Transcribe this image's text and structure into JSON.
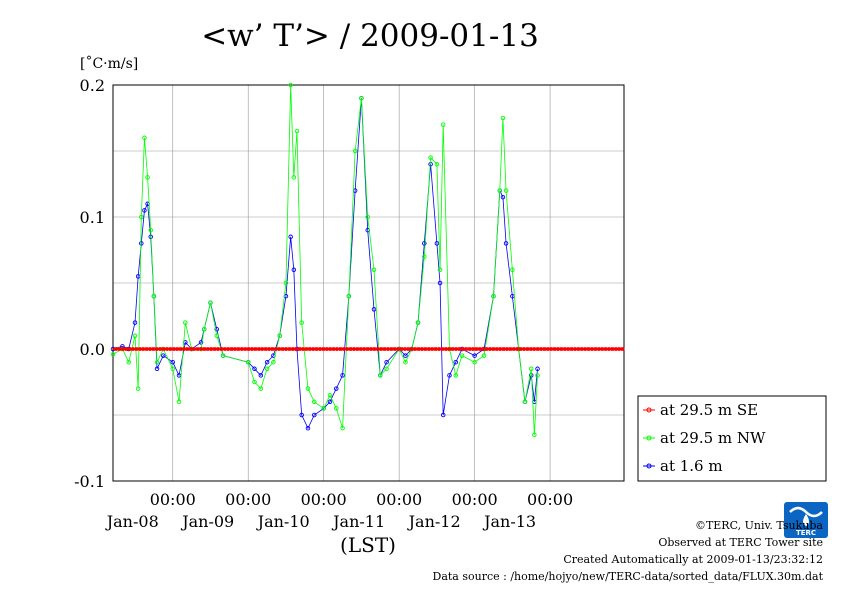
{
  "chart_data": {
    "type": "line",
    "title": "<w’ T’> / 2009-01-13",
    "unit_label": "[˚C·m/s]",
    "xlabel": "(LST)",
    "ylim": [
      -0.1,
      0.2
    ],
    "xlim": [
      "2009-01-07T05:00",
      "2009-01-13T23:30"
    ],
    "y_ticks": [
      "-0.1",
      "0.0",
      "0.1",
      "0.2"
    ],
    "x_ticks": [
      {
        "time": "00:00",
        "date": "Jan-08",
        "x": "2009-01-08T00:00"
      },
      {
        "time": "00:00",
        "date": "Jan-09",
        "x": "2009-01-09T00:00"
      },
      {
        "time": "00:00",
        "date": "Jan-10",
        "x": "2009-01-10T00:00"
      },
      {
        "time": "00:00",
        "date": "Jan-11",
        "x": "2009-01-11T00:00"
      },
      {
        "time": "00:00",
        "date": "Jan-12",
        "x": "2009-01-12T00:00"
      },
      {
        "time": "00:00",
        "date": "Jan-13",
        "x": "2009-01-13T00:00"
      }
    ],
    "grid": true,
    "legend_position": "right",
    "series": [
      {
        "name": "at 29.5 m SE",
        "color": "#ff0000",
        "marker": "open-circle",
        "points": [
          [
            "2009-01-07T05:00",
            0.0
          ],
          [
            "2009-01-08T00:00",
            0.0
          ],
          [
            "2009-01-09T00:00",
            0.0
          ],
          [
            "2009-01-10T00:00",
            0.0
          ],
          [
            "2009-01-11T00:00",
            0.0
          ],
          [
            "2009-01-12T00:00",
            0.0
          ],
          [
            "2009-01-13T00:00",
            0.0
          ],
          [
            "2009-01-13T23:30",
            0.0
          ]
        ]
      },
      {
        "name": "at 29.5 m NW",
        "color": "#00ff00",
        "marker": "open-circle",
        "points": [
          [
            "2009-01-07T05:00",
            -0.004
          ],
          [
            "2009-01-07T08:00",
            0.0
          ],
          [
            "2009-01-07T10:00",
            -0.01
          ],
          [
            "2009-01-07T12:00",
            0.01
          ],
          [
            "2009-01-07T13:00",
            -0.03
          ],
          [
            "2009-01-07T14:00",
            0.1
          ],
          [
            "2009-01-07T15:00",
            0.16
          ],
          [
            "2009-01-07T16:00",
            0.13
          ],
          [
            "2009-01-07T17:00",
            0.09
          ],
          [
            "2009-01-07T18:00",
            0.04
          ],
          [
            "2009-01-07T19:00",
            -0.01
          ],
          [
            "2009-01-07T21:00",
            0.0
          ],
          [
            "2009-01-08T00:00",
            -0.015
          ],
          [
            "2009-01-08T02:00",
            -0.04
          ],
          [
            "2009-01-08T04:00",
            0.02
          ],
          [
            "2009-01-08T06:00",
            0.0
          ],
          [
            "2009-01-08T09:00",
            0.0
          ],
          [
            "2009-01-08T10:00",
            0.015
          ],
          [
            "2009-01-08T12:00",
            0.035
          ],
          [
            "2009-01-08T14:00",
            0.01
          ],
          [
            "2009-01-08T16:00",
            -0.005
          ],
          [
            "2009-01-09T00:00",
            -0.01
          ],
          [
            "2009-01-09T02:00",
            -0.025
          ],
          [
            "2009-01-09T04:00",
            -0.03
          ],
          [
            "2009-01-09T06:00",
            -0.015
          ],
          [
            "2009-01-09T08:00",
            -0.01
          ],
          [
            "2009-01-09T10:00",
            0.01
          ],
          [
            "2009-01-09T12:00",
            0.05
          ],
          [
            "2009-01-09T13:30",
            0.2
          ],
          [
            "2009-01-09T14:30",
            0.13
          ],
          [
            "2009-01-09T15:30",
            0.165
          ],
          [
            "2009-01-09T17:00",
            0.02
          ],
          [
            "2009-01-09T19:00",
            -0.03
          ],
          [
            "2009-01-09T21:00",
            -0.04
          ],
          [
            "2009-01-10T00:00",
            -0.045
          ],
          [
            "2009-01-10T02:00",
            -0.035
          ],
          [
            "2009-01-10T04:00",
            -0.045
          ],
          [
            "2009-01-10T06:00",
            -0.06
          ],
          [
            "2009-01-10T08:00",
            0.04
          ],
          [
            "2009-01-10T10:00",
            0.15
          ],
          [
            "2009-01-10T12:00",
            0.19
          ],
          [
            "2009-01-10T14:00",
            0.1
          ],
          [
            "2009-01-10T16:00",
            0.06
          ],
          [
            "2009-01-10T18:00",
            -0.02
          ],
          [
            "2009-01-10T20:00",
            -0.015
          ],
          [
            "2009-01-11T00:00",
            0.0
          ],
          [
            "2009-01-11T02:00",
            -0.01
          ],
          [
            "2009-01-11T04:00",
            0.0
          ],
          [
            "2009-01-11T06:00",
            0.02
          ],
          [
            "2009-01-11T08:00",
            0.07
          ],
          [
            "2009-01-11T10:00",
            0.145
          ],
          [
            "2009-01-11T12:00",
            0.14
          ],
          [
            "2009-01-11T13:00",
            0.06
          ],
          [
            "2009-01-11T14:00",
            0.17
          ],
          [
            "2009-01-11T16:00",
            0.0
          ],
          [
            "2009-01-11T18:00",
            -0.02
          ],
          [
            "2009-01-11T20:00",
            -0.005
          ],
          [
            "2009-01-12T00:00",
            -0.01
          ],
          [
            "2009-01-12T03:00",
            -0.005
          ],
          [
            "2009-01-12T06:00",
            0.04
          ],
          [
            "2009-01-12T08:00",
            0.12
          ],
          [
            "2009-01-12T09:00",
            0.175
          ],
          [
            "2009-01-12T10:00",
            0.12
          ],
          [
            "2009-01-12T12:00",
            0.06
          ],
          [
            "2009-01-12T14:00",
            0.0
          ],
          [
            "2009-01-12T16:00",
            -0.04
          ],
          [
            "2009-01-12T18:00",
            -0.015
          ],
          [
            "2009-01-12T19:00",
            -0.065
          ],
          [
            "2009-01-12T20:00",
            -0.02
          ]
        ]
      },
      {
        "name": "at 1.6 m",
        "color": "#0000ff",
        "marker": "open-circle",
        "points": [
          [
            "2009-01-07T05:00",
            0.0
          ],
          [
            "2009-01-07T08:00",
            0.002
          ],
          [
            "2009-01-07T10:00",
            0.0
          ],
          [
            "2009-01-07T12:00",
            0.02
          ],
          [
            "2009-01-07T13:00",
            0.055
          ],
          [
            "2009-01-07T14:00",
            0.08
          ],
          [
            "2009-01-07T15:00",
            0.105
          ],
          [
            "2009-01-07T16:00",
            0.11
          ],
          [
            "2009-01-07T17:00",
            0.085
          ],
          [
            "2009-01-07T18:00",
            0.04
          ],
          [
            "2009-01-07T19:00",
            -0.015
          ],
          [
            "2009-01-07T21:00",
            -0.005
          ],
          [
            "2009-01-08T00:00",
            -0.01
          ],
          [
            "2009-01-08T02:00",
            -0.02
          ],
          [
            "2009-01-08T04:00",
            0.005
          ],
          [
            "2009-01-08T06:00",
            0.0
          ],
          [
            "2009-01-08T09:00",
            0.005
          ],
          [
            "2009-01-08T10:00",
            0.015
          ],
          [
            "2009-01-08T12:00",
            0.035
          ],
          [
            "2009-01-08T14:00",
            0.015
          ],
          [
            "2009-01-08T16:00",
            -0.005
          ],
          [
            "2009-01-09T00:00",
            -0.01
          ],
          [
            "2009-01-09T02:00",
            -0.015
          ],
          [
            "2009-01-09T04:00",
            -0.02
          ],
          [
            "2009-01-09T06:00",
            -0.01
          ],
          [
            "2009-01-09T08:00",
            -0.005
          ],
          [
            "2009-01-09T10:00",
            0.01
          ],
          [
            "2009-01-09T12:00",
            0.04
          ],
          [
            "2009-01-09T13:30",
            0.085
          ],
          [
            "2009-01-09T14:30",
            0.06
          ],
          [
            "2009-01-09T15:30",
            0.0
          ],
          [
            "2009-01-09T17:00",
            -0.05
          ],
          [
            "2009-01-09T19:00",
            -0.06
          ],
          [
            "2009-01-09T21:00",
            -0.05
          ],
          [
            "2009-01-10T00:00",
            -0.045
          ],
          [
            "2009-01-10T02:00",
            -0.04
          ],
          [
            "2009-01-10T04:00",
            -0.03
          ],
          [
            "2009-01-10T06:00",
            -0.02
          ],
          [
            "2009-01-10T08:00",
            0.04
          ],
          [
            "2009-01-10T10:00",
            0.12
          ],
          [
            "2009-01-10T12:00",
            0.19
          ],
          [
            "2009-01-10T14:00",
            0.09
          ],
          [
            "2009-01-10T16:00",
            0.03
          ],
          [
            "2009-01-10T18:00",
            -0.02
          ],
          [
            "2009-01-10T20:00",
            -0.01
          ],
          [
            "2009-01-11T00:00",
            0.0
          ],
          [
            "2009-01-11T02:00",
            -0.005
          ],
          [
            "2009-01-11T04:00",
            0.0
          ],
          [
            "2009-01-11T06:00",
            0.02
          ],
          [
            "2009-01-11T08:00",
            0.08
          ],
          [
            "2009-01-11T10:00",
            0.14
          ],
          [
            "2009-01-11T12:00",
            0.08
          ],
          [
            "2009-01-11T13:00",
            0.05
          ],
          [
            "2009-01-11T14:00",
            -0.05
          ],
          [
            "2009-01-11T16:00",
            -0.02
          ],
          [
            "2009-01-11T18:00",
            -0.01
          ],
          [
            "2009-01-11T20:00",
            0.0
          ],
          [
            "2009-01-12T00:00",
            -0.005
          ],
          [
            "2009-01-12T03:00",
            0.0
          ],
          [
            "2009-01-12T06:00",
            0.04
          ],
          [
            "2009-01-12T08:00",
            0.12
          ],
          [
            "2009-01-12T09:00",
            0.115
          ],
          [
            "2009-01-12T10:00",
            0.08
          ],
          [
            "2009-01-12T12:00",
            0.04
          ],
          [
            "2009-01-12T14:00",
            0.0
          ],
          [
            "2009-01-12T16:00",
            -0.04
          ],
          [
            "2009-01-12T18:00",
            -0.02
          ],
          [
            "2009-01-12T19:00",
            -0.04
          ],
          [
            "2009-01-12T20:00",
            -0.015
          ]
        ]
      }
    ]
  },
  "footer": {
    "copyright": "©TERC, Univ. Tsukuba",
    "observed": "Observed at TERC Tower site",
    "created": "Created Automatically at 2009-01-13/23:32:12",
    "source": "Data source : /home/hojyo/new/TERC-data/sorted_data/FLUX.30m.dat"
  },
  "logo": {
    "text": "TERC",
    "color": "#0a66c2",
    "icon": "terc-logo-icon"
  }
}
